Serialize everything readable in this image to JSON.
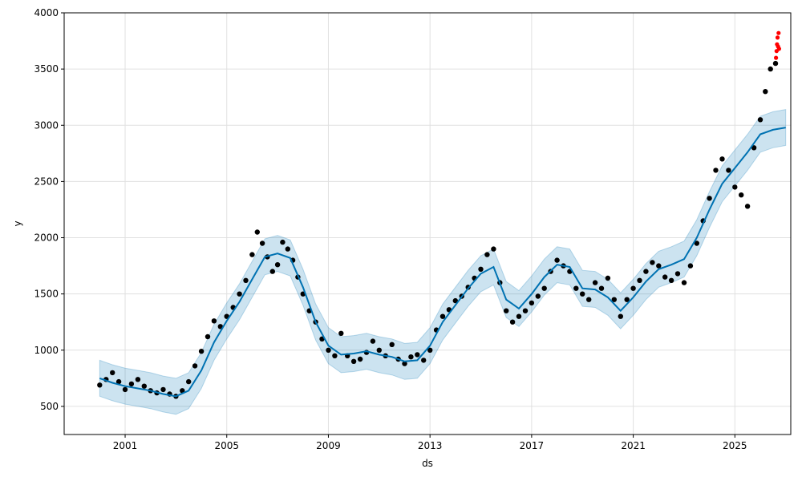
{
  "chart_data": {
    "type": "line",
    "xlabel": "ds",
    "ylabel": "y",
    "xlim": [
      1998.6,
      2027.2
    ],
    "ylim": [
      250,
      4000
    ],
    "x_ticks": [
      2001,
      2005,
      2009,
      2013,
      2017,
      2021,
      2025
    ],
    "x_tick_labels": [
      "2001",
      "2005",
      "2009",
      "2013",
      "2017",
      "2021",
      "2025"
    ],
    "y_ticks": [
      500,
      1000,
      1500,
      2000,
      2500,
      3000,
      3500,
      4000
    ],
    "y_tick_labels": [
      "500",
      "1000",
      "1500",
      "2000",
      "2500",
      "3000",
      "3500",
      "4000"
    ],
    "grid": true,
    "colors": {
      "forecast_line": "#0072B2",
      "interval_band": "#0072B2",
      "history_points": "#000000",
      "anomaly_points": "#ff0000",
      "grid": "#e0e0e0"
    },
    "series": [
      {
        "role": "observed",
        "style": "points",
        "color": "#000000",
        "x": [
          2000.0,
          2000.25,
          2000.5,
          2000.75,
          2001.0,
          2001.25,
          2001.5,
          2001.75,
          2002.0,
          2002.25,
          2002.5,
          2002.75,
          2003.0,
          2003.25,
          2003.5,
          2003.75,
          2004.0,
          2004.25,
          2004.5,
          2004.75,
          2005.0,
          2005.25,
          2005.5,
          2005.75,
          2006.0,
          2006.2,
          2006.4,
          2006.6,
          2006.8,
          2007.0,
          2007.2,
          2007.4,
          2007.6,
          2007.8,
          2008.0,
          2008.25,
          2008.5,
          2008.75,
          2009.0,
          2009.25,
          2009.5,
          2009.75,
          2010.0,
          2010.25,
          2010.5,
          2010.75,
          2011.0,
          2011.25,
          2011.5,
          2011.75,
          2012.0,
          2012.25,
          2012.5,
          2012.75,
          2013.0,
          2013.25,
          2013.5,
          2013.75,
          2014.0,
          2014.25,
          2014.5,
          2014.75,
          2015.0,
          2015.25,
          2015.5,
          2015.75,
          2016.0,
          2016.25,
          2016.5,
          2016.75,
          2017.0,
          2017.25,
          2017.5,
          2017.75,
          2018.0,
          2018.25,
          2018.5,
          2018.75,
          2019.0,
          2019.25,
          2019.5,
          2019.75,
          2020.0,
          2020.25,
          2020.5,
          2020.75,
          2021.0,
          2021.25,
          2021.5,
          2021.75,
          2022.0,
          2022.25,
          2022.5,
          2022.75,
          2023.0,
          2023.25,
          2023.5,
          2023.75,
          2024.0,
          2024.25,
          2024.5,
          2024.75,
          2025.0,
          2025.25,
          2025.5,
          2025.75,
          2026.0,
          2026.2,
          2026.4,
          2026.6
        ],
        "y": [
          690,
          740,
          800,
          720,
          650,
          700,
          740,
          680,
          640,
          620,
          650,
          610,
          590,
          640,
          720,
          860,
          990,
          1120,
          1260,
          1210,
          1300,
          1380,
          1500,
          1620,
          1850,
          2050,
          1950,
          1830,
          1700,
          1760,
          1960,
          1900,
          1800,
          1650,
          1500,
          1350,
          1250,
          1100,
          1000,
          950,
          1150,
          950,
          900,
          920,
          980,
          1080,
          1000,
          950,
          1050,
          920,
          880,
          940,
          960,
          910,
          1000,
          1180,
          1300,
          1360,
          1440,
          1480,
          1560,
          1640,
          1720,
          1850,
          1900,
          1600,
          1350,
          1250,
          1300,
          1350,
          1420,
          1480,
          1550,
          1700,
          1800,
          1750,
          1700,
          1550,
          1500,
          1450,
          1600,
          1550,
          1640,
          1450,
          1300,
          1450,
          1550,
          1620,
          1700,
          1780,
          1750,
          1650,
          1620,
          1680,
          1600,
          1750,
          1950,
          2150,
          2350,
          2600,
          2700,
          2600,
          2450,
          2380,
          2280,
          2800,
          3050,
          3300,
          3500,
          3550
        ]
      },
      {
        "role": "anomaly",
        "style": "points",
        "color": "#ff0000",
        "x": [
          2026.62,
          2026.64,
          2026.66,
          2026.68,
          2026.7,
          2026.72,
          2026.74
        ],
        "y": [
          3600,
          3660,
          3720,
          3780,
          3700,
          3820,
          3680
        ]
      },
      {
        "role": "forecast",
        "style": "line",
        "color": "#0072B2",
        "x": [
          2000.0,
          2000.5,
          2001.0,
          2001.5,
          2002.0,
          2002.5,
          2003.0,
          2003.5,
          2004.0,
          2004.5,
          2005.0,
          2005.5,
          2006.0,
          2006.5,
          2007.0,
          2007.5,
          2008.0,
          2008.5,
          2009.0,
          2009.5,
          2010.0,
          2010.5,
          2011.0,
          2011.5,
          2012.0,
          2012.5,
          2013.0,
          2013.5,
          2014.0,
          2014.5,
          2015.0,
          2015.5,
          2016.0,
          2016.5,
          2017.0,
          2017.5,
          2018.0,
          2018.5,
          2019.0,
          2019.5,
          2020.0,
          2020.5,
          2021.0,
          2021.5,
          2022.0,
          2022.5,
          2023.0,
          2023.5,
          2024.0,
          2024.5,
          2025.0,
          2025.5,
          2026.0,
          2026.5,
          2027.0
        ],
        "y": [
          750,
          710,
          680,
          660,
          640,
          610,
          590,
          640,
          820,
          1070,
          1260,
          1430,
          1630,
          1830,
          1860,
          1820,
          1560,
          1250,
          1040,
          960,
          970,
          990,
          960,
          940,
          900,
          910,
          1040,
          1250,
          1400,
          1550,
          1680,
          1740,
          1450,
          1370,
          1500,
          1650,
          1760,
          1740,
          1550,
          1540,
          1470,
          1350,
          1470,
          1610,
          1720,
          1760,
          1810,
          2000,
          2250,
          2480,
          2620,
          2760,
          2920,
          2960,
          2980
        ]
      },
      {
        "role": "interval",
        "style": "band",
        "color": "#0072B2",
        "x": [
          2000.0,
          2000.5,
          2001.0,
          2001.5,
          2002.0,
          2002.5,
          2003.0,
          2003.5,
          2004.0,
          2004.5,
          2005.0,
          2005.5,
          2006.0,
          2006.5,
          2007.0,
          2007.5,
          2008.0,
          2008.5,
          2009.0,
          2009.5,
          2010.0,
          2010.5,
          2011.0,
          2011.5,
          2012.0,
          2012.5,
          2013.0,
          2013.5,
          2014.0,
          2014.5,
          2015.0,
          2015.5,
          2016.0,
          2016.5,
          2017.0,
          2017.5,
          2018.0,
          2018.5,
          2019.0,
          2019.5,
          2020.0,
          2020.5,
          2021.0,
          2021.5,
          2022.0,
          2022.5,
          2023.0,
          2023.5,
          2024.0,
          2024.5,
          2025.0,
          2025.5,
          2026.0,
          2026.5,
          2027.0
        ],
        "lower": [
          590,
          550,
          520,
          500,
          480,
          450,
          430,
          480,
          660,
          910,
          1100,
          1270,
          1470,
          1670,
          1700,
          1660,
          1400,
          1090,
          880,
          800,
          810,
          830,
          800,
          780,
          740,
          750,
          880,
          1090,
          1240,
          1390,
          1520,
          1580,
          1290,
          1210,
          1340,
          1490,
          1600,
          1580,
          1390,
          1380,
          1310,
          1190,
          1310,
          1450,
          1560,
          1600,
          1650,
          1840,
          2090,
          2320,
          2460,
          2600,
          2760,
          2800,
          2820
        ],
        "upper": [
          910,
          870,
          840,
          820,
          800,
          770,
          750,
          800,
          980,
          1230,
          1420,
          1590,
          1790,
          1990,
          2020,
          1980,
          1720,
          1410,
          1200,
          1120,
          1130,
          1150,
          1120,
          1100,
          1060,
          1070,
          1200,
          1410,
          1560,
          1710,
          1840,
          1900,
          1610,
          1530,
          1660,
          1810,
          1920,
          1900,
          1710,
          1700,
          1630,
          1510,
          1630,
          1770,
          1880,
          1920,
          1970,
          2160,
          2410,
          2640,
          2780,
          2920,
          3080,
          3120,
          3140
        ]
      }
    ]
  }
}
